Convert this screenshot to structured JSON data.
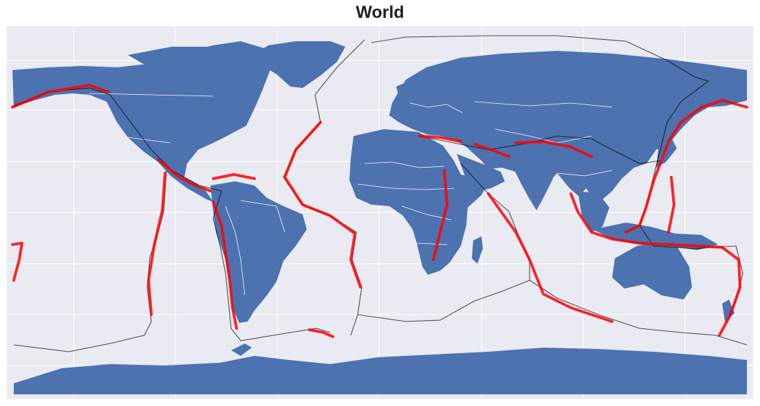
{
  "title": "World",
  "colors": {
    "background": "#eaeaf2",
    "land": "#4c72b0",
    "borders": "#ffffff",
    "quakes": "#ff0000",
    "plate_boundaries": "#000000",
    "grid": "#ffffff"
  },
  "map": {
    "projection": "plate-carree",
    "gridlines": true,
    "layers": [
      "land",
      "country-borders",
      "plate-boundaries",
      "earthquake-epicenters"
    ]
  }
}
